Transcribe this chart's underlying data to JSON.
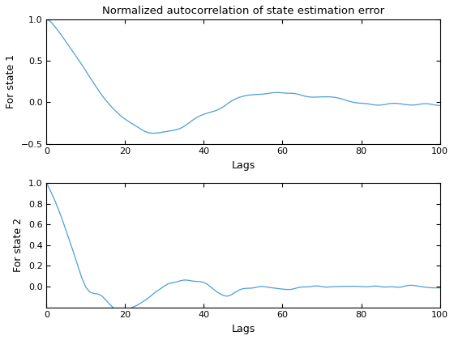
{
  "title": "Normalized autocorrelation of state estimation error",
  "xlabel": "Lags",
  "ylabel1": "For state 1",
  "ylabel2": "For state 2",
  "xlim": [
    0,
    100
  ],
  "ylim1": [
    -0.5,
    1
  ],
  "ylim2": [
    -0.2,
    1
  ],
  "xticks": [
    0,
    20,
    40,
    60,
    80,
    100
  ],
  "yticks1": [
    -0.5,
    0,
    0.5,
    1
  ],
  "yticks2": [
    0,
    0.2,
    0.4,
    0.6,
    0.8,
    1
  ],
  "line_color": "#4C9ED9",
  "background_color": "#ffffff"
}
